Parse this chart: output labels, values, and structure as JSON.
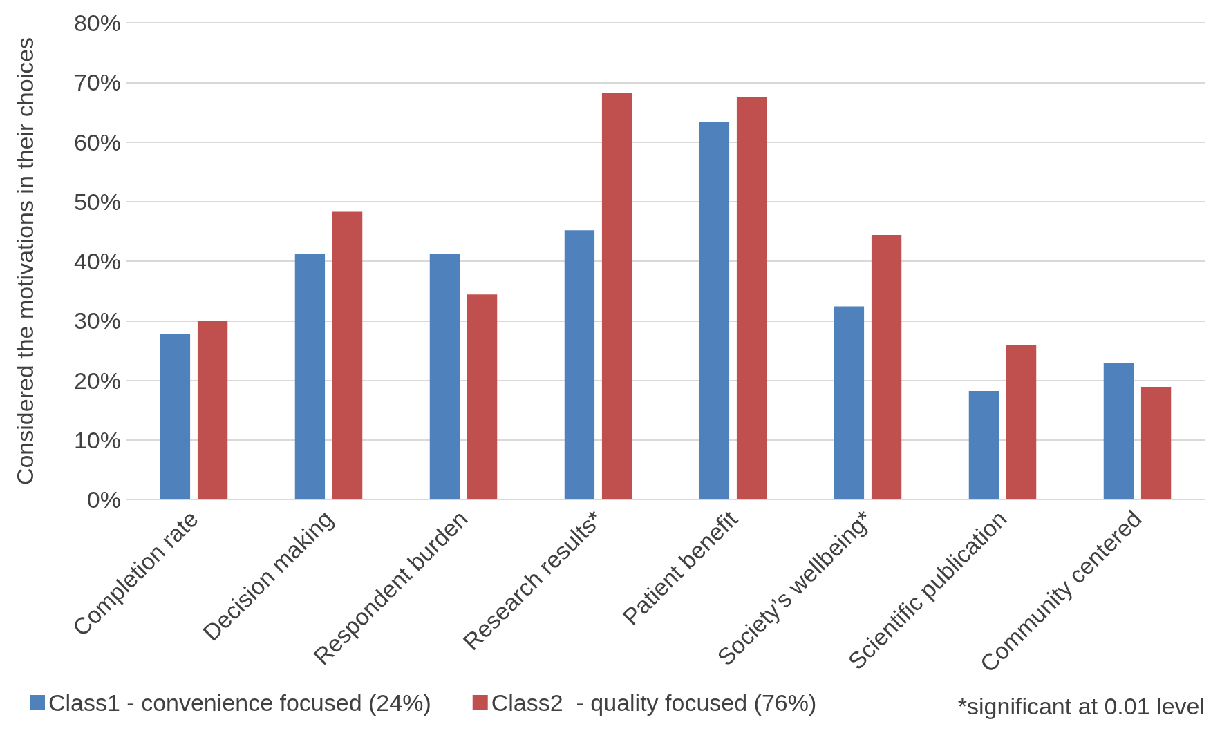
{
  "chart_data": {
    "type": "bar",
    "ylabel": "Considered the motivations in their choices",
    "categories": [
      "Completion rate",
      "Decision making",
      "Respondent burden",
      "Research results*",
      "Patient benefit",
      "Society’s wellbeing*",
      "Scientific publication",
      "Community centered"
    ],
    "series": [
      {
        "name": "Class1 - convenience focused (24%)",
        "color": "#4f81bd",
        "values": [
          27.7,
          41.2,
          41.2,
          45.2,
          63.4,
          32.4,
          18.2,
          22.9
        ]
      },
      {
        "name": "Class2  - quality focused (76%)",
        "color": "#c0504d",
        "values": [
          29.9,
          48.3,
          34.4,
          68.2,
          67.5,
          44.4,
          25.9,
          18.9
        ]
      }
    ],
    "ylim": [
      0,
      80
    ],
    "yticks": [
      {
        "value": 0,
        "label": "0%"
      },
      {
        "value": 10,
        "label": "10%"
      },
      {
        "value": 20,
        "label": "20%"
      },
      {
        "value": 30,
        "label": "30%"
      },
      {
        "value": 40,
        "label": "40%"
      },
      {
        "value": 50,
        "label": "50%"
      },
      {
        "value": 60,
        "label": "60%"
      },
      {
        "value": 70,
        "label": "70%"
      },
      {
        "value": 80,
        "label": "80%"
      }
    ],
    "grid": "y",
    "legend": "bottom",
    "annotations": [
      "*significant at 0.01 level"
    ]
  }
}
